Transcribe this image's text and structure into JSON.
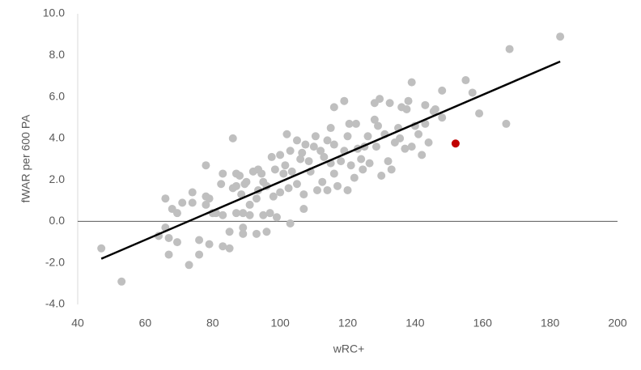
{
  "chart_data": {
    "type": "scatter",
    "xlabel": "wRC+",
    "ylabel": "fWAR per 600 PA",
    "xlim": [
      40,
      200
    ],
    "xticks": [
      40,
      60,
      80,
      100,
      120,
      140,
      160,
      180,
      200
    ],
    "ylim": [
      -4,
      10
    ],
    "yticks": [
      {
        "value": -4,
        "label": "-4.0"
      },
      {
        "value": -2,
        "label": "-2.0"
      },
      {
        "value": 0,
        "label": "0.0"
      },
      {
        "value": 2,
        "label": "2.0"
      },
      {
        "value": 4,
        "label": "4.0"
      },
      {
        "value": 6,
        "label": "6.0"
      },
      {
        "value": 8,
        "label": "8.0"
      },
      {
        "value": 10,
        "label": "10.0"
      }
    ],
    "grid": false,
    "series": [
      {
        "color": "#bfbfbf",
        "x": [
          47,
          53,
          66,
          64,
          66,
          67,
          67,
          68,
          69.5,
          69.5,
          71,
          73,
          74,
          74,
          76,
          76,
          78,
          78,
          78,
          79,
          79,
          80,
          81,
          82.5,
          83,
          83,
          83,
          85,
          85,
          86,
          86,
          87,
          87,
          87,
          88,
          88.5,
          89,
          89,
          89,
          89.5,
          90,
          91,
          91,
          92,
          93,
          93,
          93.5,
          93.5,
          94.5,
          95,
          95,
          96,
          96,
          97,
          97.5,
          98,
          98.5,
          99,
          100,
          100,
          101,
          101.5,
          102,
          102.5,
          103,
          103,
          103.5,
          105,
          105,
          106,
          106.5,
          107,
          107,
          107.5,
          108.5,
          109,
          110,
          110.5,
          111,
          112,
          112.5,
          113,
          114,
          114,
          115,
          115,
          116,
          116,
          116,
          117,
          118,
          119,
          119,
          120,
          120,
          120.5,
          121,
          122,
          122.5,
          123,
          124,
          124.5,
          125,
          126,
          126.5,
          128,
          128,
          128.5,
          129,
          129.5,
          130,
          131,
          132,
          132.5,
          133,
          134,
          135,
          135.5,
          136,
          137,
          137.5,
          138,
          139,
          139,
          140,
          141,
          142,
          143,
          143,
          144,
          145.5,
          146,
          148,
          148,
          155,
          157,
          159,
          167,
          168,
          183
        ],
        "values": [
          -1.3,
          -2.9,
          1.1,
          -0.7,
          -0.3,
          -0.8,
          -1.6,
          0.6,
          0.4,
          -1.0,
          0.9,
          -2.1,
          0.9,
          1.4,
          -0.9,
          -1.6,
          0.8,
          2.7,
          1.2,
          1.1,
          -1.1,
          0.4,
          0.4,
          1.8,
          2.3,
          0.3,
          -1.2,
          -1.3,
          -0.5,
          4.0,
          1.6,
          1.7,
          2.3,
          0.4,
          2.2,
          1.3,
          -0.6,
          -0.3,
          0.4,
          1.8,
          1.9,
          0.8,
          0.3,
          2.4,
          1.1,
          -0.6,
          1.5,
          2.5,
          2.3,
          1.9,
          0.3,
          -0.5,
          1.7,
          0.4,
          3.1,
          1.2,
          2.5,
          0.2,
          3.2,
          1.4,
          2.3,
          2.7,
          4.2,
          1.6,
          -0.1,
          3.4,
          2.4,
          3.9,
          1.8,
          3.0,
          3.3,
          0.6,
          1.3,
          3.7,
          2.9,
          2.4,
          3.6,
          4.1,
          1.5,
          3.4,
          1.9,
          3.1,
          1.5,
          3.9,
          4.5,
          2.8,
          5.5,
          2.3,
          3.7,
          1.7,
          2.9,
          5.8,
          3.4,
          1.5,
          4.1,
          4.7,
          2.7,
          2.1,
          4.7,
          3.5,
          3.0,
          2.5,
          3.6,
          4.1,
          2.8,
          4.9,
          5.7,
          3.6,
          4.6,
          5.9,
          2.2,
          4.2,
          2.9,
          5.7,
          2.5,
          3.8,
          4.5,
          4.0,
          5.5,
          3.5,
          5.4,
          5.8,
          6.7,
          3.6,
          4.6,
          4.2,
          3.2,
          5.6,
          4.7,
          3.8,
          5.3,
          5.4,
          5.0,
          6.3,
          6.8,
          6.2,
          5.2,
          4.7,
          8.3,
          8.9
        ]
      },
      {
        "color": "#c00000",
        "x": [
          152
        ],
        "values": [
          3.75
        ]
      }
    ],
    "trendline": {
      "color": "#000000",
      "x": [
        47,
        183
      ],
      "values": [
        -1.8,
        7.7
      ]
    }
  }
}
